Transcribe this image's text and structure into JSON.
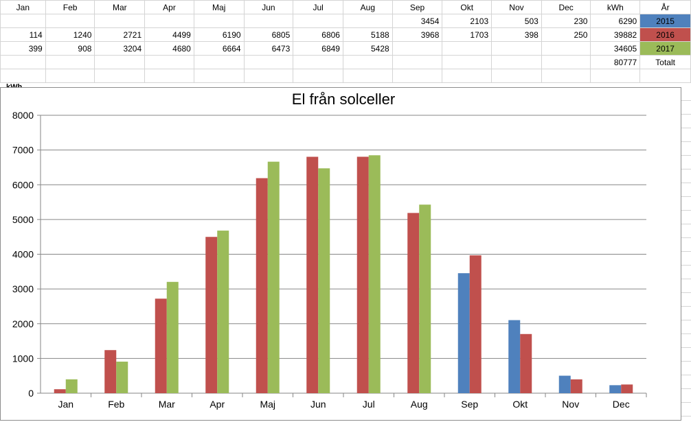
{
  "sheet": {
    "headers": [
      "Jan",
      "Feb",
      "Mar",
      "Apr",
      "Maj",
      "Jun",
      "Jul",
      "Aug",
      "Sep",
      "Okt",
      "Nov",
      "Dec",
      "kWh",
      "År"
    ],
    "rows": [
      [
        "",
        "",
        "",
        "",
        "",
        "",
        "",
        "",
        "3454",
        "2103",
        "503",
        "230",
        "6290",
        "2015"
      ],
      [
        "114",
        "1240",
        "2721",
        "4499",
        "6190",
        "6805",
        "6806",
        "5188",
        "3968",
        "1703",
        "398",
        "250",
        "39882",
        "2016"
      ],
      [
        "399",
        "908",
        "3204",
        "4680",
        "6664",
        "6473",
        "6849",
        "5428",
        "",
        "",
        "",
        "",
        "34605",
        "2017"
      ],
      [
        "",
        "",
        "",
        "",
        "",
        "",
        "",
        "",
        "",
        "",
        "",
        "",
        "80777",
        "Totalt"
      ],
      [
        "",
        "",
        "",
        "",
        "",
        "",
        "",
        "",
        "",
        "",
        "",
        "",
        "",
        ""
      ]
    ],
    "year_colors": {
      "2015": "#4f81bd",
      "2016": "#c0504d",
      "2017": "#9bbb59"
    }
  },
  "chart_data": {
    "type": "bar",
    "title": "El från solceller",
    "ylabel": "kWh",
    "xlabel": "",
    "ylim": [
      0,
      8000
    ],
    "yticks": [
      0,
      1000,
      2000,
      3000,
      4000,
      5000,
      6000,
      7000,
      8000
    ],
    "grid": true,
    "categories": [
      "Jan",
      "Feb",
      "Mar",
      "Apr",
      "Maj",
      "Jun",
      "Jul",
      "Aug",
      "Sep",
      "Okt",
      "Nov",
      "Dec"
    ],
    "series": [
      {
        "name": "2015",
        "color": "#4f81bd",
        "values": [
          null,
          null,
          null,
          null,
          null,
          null,
          null,
          null,
          3454,
          2103,
          503,
          230
        ]
      },
      {
        "name": "2016",
        "color": "#c0504d",
        "values": [
          114,
          1240,
          2721,
          4499,
          6190,
          6805,
          6806,
          5188,
          3968,
          1703,
          398,
          250
        ]
      },
      {
        "name": "2017",
        "color": "#9bbb59",
        "values": [
          399,
          908,
          3204,
          4680,
          6664,
          6473,
          6849,
          5428,
          null,
          null,
          null,
          null
        ]
      }
    ]
  }
}
